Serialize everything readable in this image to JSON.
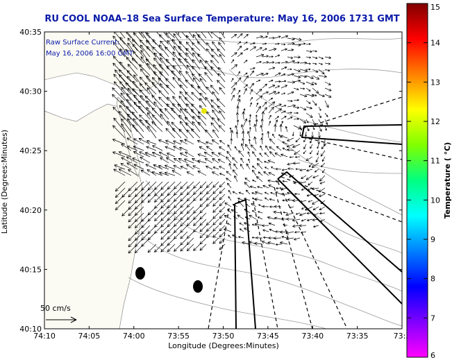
{
  "chart_data": {
    "type": "map",
    "title": "RU COOL  NOAA–18  Sea Surface Temperature:  May 16, 2006 1731 GMT",
    "xlabel": "Longitude (Degrees:Minutes)",
    "ylabel": "Latitude (Degrees:Minutes)",
    "x_ticks": [
      "74:10",
      "74:05",
      "74:00",
      "73:55",
      "73:50",
      "73:45",
      "73:40",
      "73:35",
      "73:3"
    ],
    "y_ticks": [
      "40:35",
      "40:30",
      "40:25",
      "40:20",
      "40:15",
      "40:10"
    ],
    "annotation": [
      "Raw Surface Current:",
      "May 16, 2006 16:00 GMT"
    ],
    "scale_label": "50 cm/s",
    "colorbar": {
      "label": "Temperature ( °C)",
      "min": 6,
      "max": 15,
      "ticks": [
        15,
        14,
        13,
        12,
        11,
        10,
        9,
        8,
        7,
        6
      ],
      "colors": [
        "#ff00ff",
        "#8000ff",
        "#0000ff",
        "#0080ff",
        "#00ffff",
        "#00ff80",
        "#80ff00",
        "#ffff00",
        "#ff8000",
        "#ff0000",
        "#800000"
      ]
    },
    "grid": false
  }
}
